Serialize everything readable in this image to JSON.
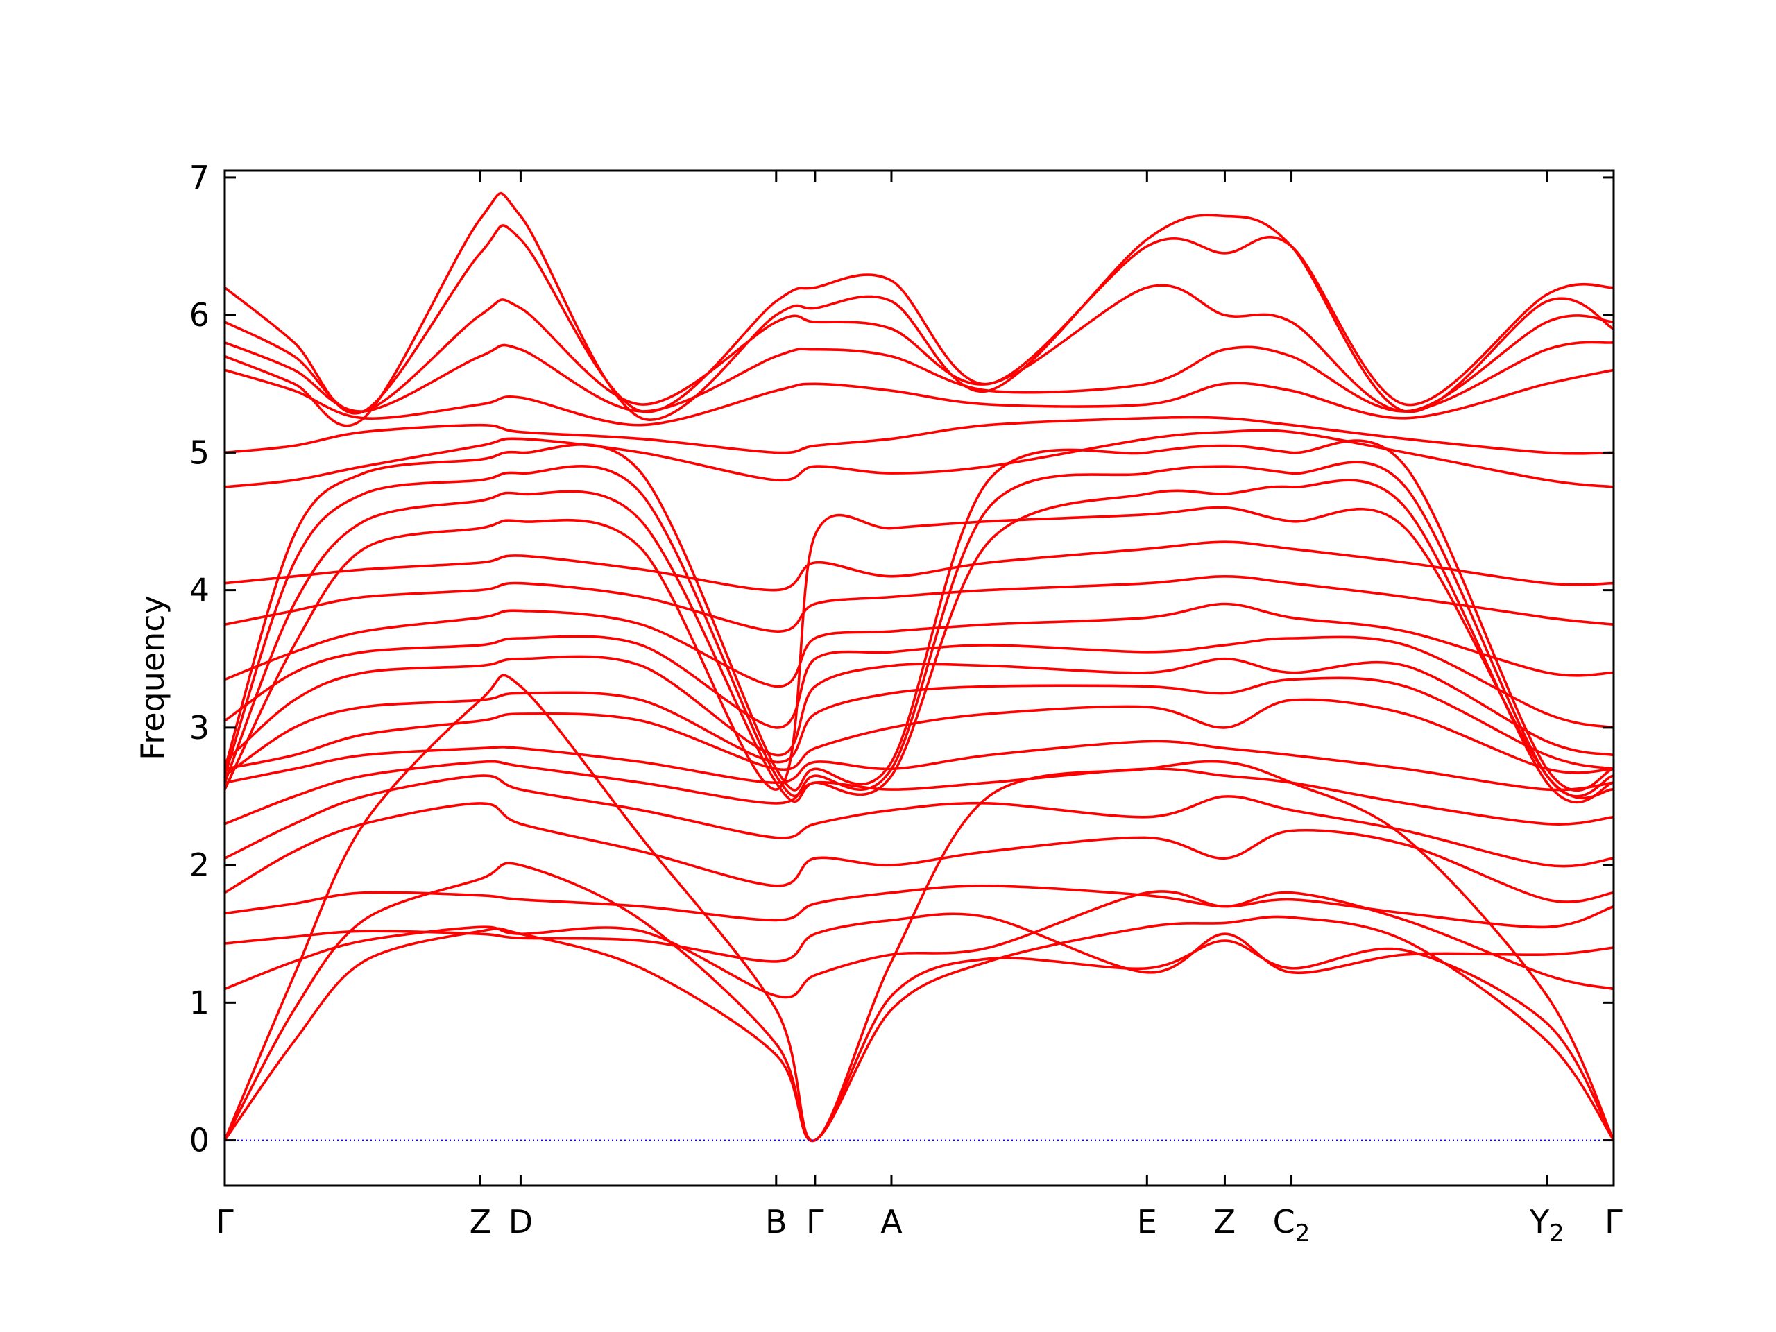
{
  "chart_data": {
    "type": "line",
    "title": "",
    "xlabel": "",
    "ylabel": "Frequency",
    "ylim": [
      -0.33,
      7.05
    ],
    "yticks": [
      0,
      1,
      2,
      3,
      4,
      5,
      6,
      7
    ],
    "grid": false,
    "legend": "none",
    "band_color": "#ff0000",
    "zero_line_color": "#0000ff",
    "high_symmetry_points": [
      {
        "label": "Γ",
        "sub": "",
        "x": 0.0
      },
      {
        "label": "Z",
        "sub": "",
        "x": 0.184
      },
      {
        "label": "D",
        "sub": "",
        "x": 0.213
      },
      {
        "label": "B",
        "sub": "",
        "x": 0.397
      },
      {
        "label": "Γ",
        "sub": "",
        "x": 0.425
      },
      {
        "label": "A",
        "sub": "",
        "x": 0.48
      },
      {
        "label": "E",
        "sub": "",
        "x": 0.664
      },
      {
        "label": "Z",
        "sub": "",
        "x": 0.72
      },
      {
        "label": "C",
        "sub": "2",
        "x": 0.768
      },
      {
        "label": "Y",
        "sub": "2",
        "x": 0.952
      },
      {
        "label": "Γ",
        "sub": "",
        "x": 1.0
      }
    ],
    "series": [
      {
        "x": [
          0.0,
          0.05,
          0.1,
          0.184,
          0.213,
          0.3,
          0.397,
          0.425,
          0.48,
          0.55,
          0.664,
          0.72,
          0.768,
          0.85,
          0.952,
          1.0
        ],
        "values": [
          0.0,
          0.72,
          1.3,
          1.52,
          1.5,
          1.25,
          0.62,
          0.0,
          0.95,
          1.3,
          1.55,
          1.58,
          1.62,
          1.45,
          0.72,
          0.0
        ]
      },
      {
        "x": [
          0.0,
          0.05,
          0.1,
          0.184,
          0.213,
          0.3,
          0.397,
          0.425,
          0.48,
          0.55,
          0.664,
          0.72,
          0.768,
          0.85,
          0.952,
          1.0
        ],
        "values": [
          0.0,
          0.95,
          1.6,
          1.9,
          2.0,
          1.6,
          0.7,
          0.0,
          1.05,
          1.32,
          1.25,
          1.45,
          1.25,
          1.38,
          0.85,
          0.0
        ]
      },
      {
        "x": [
          0.0,
          0.05,
          0.1,
          0.184,
          0.213,
          0.3,
          0.397,
          0.425,
          0.48,
          0.55,
          0.664,
          0.72,
          0.768,
          0.85,
          0.952,
          1.0
        ],
        "values": [
          0.0,
          1.2,
          2.3,
          3.2,
          3.3,
          2.2,
          0.95,
          0.0,
          1.3,
          2.5,
          2.7,
          2.75,
          2.6,
          2.2,
          1.05,
          0.0
        ]
      },
      {
        "x": [
          0.0,
          0.05,
          0.1,
          0.184,
          0.213,
          0.3,
          0.397,
          0.425,
          0.48,
          0.55,
          0.664,
          0.72,
          0.768,
          0.85,
          0.952,
          1.0
        ],
        "values": [
          1.1,
          1.3,
          1.45,
          1.55,
          1.5,
          1.52,
          1.05,
          1.2,
          1.35,
          1.4,
          1.8,
          1.7,
          1.8,
          1.6,
          1.2,
          1.1
        ]
      },
      {
        "x": [
          0.0,
          0.05,
          0.1,
          0.184,
          0.213,
          0.3,
          0.397,
          0.425,
          0.48,
          0.55,
          0.664,
          0.72,
          0.768,
          0.85,
          0.952,
          1.0
        ],
        "values": [
          1.43,
          1.48,
          1.52,
          1.5,
          1.47,
          1.45,
          1.3,
          1.5,
          1.6,
          1.62,
          1.22,
          1.5,
          1.22,
          1.35,
          1.35,
          1.4
        ]
      },
      {
        "x": [
          0.0,
          0.05,
          0.1,
          0.184,
          0.213,
          0.3,
          0.397,
          0.425,
          0.48,
          0.55,
          0.664,
          0.72,
          0.768,
          0.85,
          0.952,
          1.0
        ],
        "values": [
          1.65,
          1.72,
          1.8,
          1.78,
          1.75,
          1.7,
          1.6,
          1.72,
          1.8,
          1.85,
          1.78,
          1.7,
          1.75,
          1.65,
          1.55,
          1.7
        ]
      },
      {
        "x": [
          0.0,
          0.05,
          0.1,
          0.184,
          0.213,
          0.3,
          0.397,
          0.425,
          0.48,
          0.55,
          0.664,
          0.72,
          0.768,
          0.85,
          0.952,
          1.0
        ],
        "values": [
          1.8,
          2.1,
          2.3,
          2.45,
          2.3,
          2.1,
          1.85,
          2.05,
          2.0,
          2.1,
          2.2,
          2.05,
          2.25,
          2.15,
          1.75,
          1.8
        ]
      },
      {
        "x": [
          0.0,
          0.05,
          0.1,
          0.184,
          0.213,
          0.3,
          0.397,
          0.425,
          0.48,
          0.55,
          0.664,
          0.72,
          0.768,
          0.85,
          0.952,
          1.0
        ],
        "values": [
          2.05,
          2.3,
          2.5,
          2.65,
          2.55,
          2.4,
          2.2,
          2.3,
          2.4,
          2.45,
          2.35,
          2.5,
          2.4,
          2.25,
          2.0,
          2.05
        ]
      },
      {
        "x": [
          0.0,
          0.05,
          0.1,
          0.184,
          0.213,
          0.3,
          0.397,
          0.425,
          0.48,
          0.55,
          0.664,
          0.72,
          0.768,
          0.85,
          0.952,
          1.0
        ],
        "values": [
          2.3,
          2.5,
          2.65,
          2.75,
          2.72,
          2.6,
          2.45,
          2.6,
          2.55,
          2.6,
          2.7,
          2.65,
          2.6,
          2.45,
          2.3,
          2.35
        ]
      },
      {
        "x": [
          0.0,
          0.05,
          0.1,
          0.184,
          0.213,
          0.3,
          0.397,
          0.425,
          0.48,
          0.55,
          0.664,
          0.72,
          0.768,
          0.85,
          0.952,
          1.0
        ],
        "values": [
          2.6,
          2.7,
          2.8,
          2.85,
          2.85,
          2.75,
          2.6,
          2.75,
          2.7,
          2.8,
          2.9,
          2.85,
          2.8,
          2.7,
          2.55,
          2.6
        ]
      },
      {
        "x": [
          0.0,
          0.05,
          0.1,
          0.184,
          0.213,
          0.3,
          0.397,
          0.425,
          0.48,
          0.55,
          0.664,
          0.72,
          0.768,
          0.85,
          0.952,
          1.0
        ],
        "values": [
          2.7,
          2.8,
          2.95,
          3.05,
          3.1,
          3.05,
          2.7,
          2.85,
          3.0,
          3.1,
          3.15,
          3.0,
          3.2,
          3.1,
          2.7,
          2.7
        ]
      },
      {
        "x": [
          0.0,
          0.05,
          0.1,
          0.184,
          0.213,
          0.3,
          0.397,
          0.425,
          0.48,
          0.55,
          0.664,
          0.72,
          0.768,
          0.85,
          0.952,
          1.0
        ],
        "values": [
          2.65,
          3.0,
          3.15,
          3.2,
          3.25,
          3.2,
          2.75,
          3.1,
          3.25,
          3.3,
          3.3,
          3.25,
          3.35,
          3.3,
          2.8,
          2.7
        ]
      },
      {
        "x": [
          0.0,
          0.05,
          0.1,
          0.184,
          0.213,
          0.3,
          0.397,
          0.425,
          0.48,
          0.55,
          0.664,
          0.72,
          0.768,
          0.85,
          0.952,
          1.0
        ],
        "values": [
          2.75,
          3.2,
          3.4,
          3.45,
          3.5,
          3.45,
          2.8,
          3.3,
          3.45,
          3.45,
          3.4,
          3.5,
          3.4,
          3.45,
          2.9,
          2.8
        ]
      },
      {
        "x": [
          0.0,
          0.05,
          0.1,
          0.184,
          0.213,
          0.3,
          0.397,
          0.425,
          0.48,
          0.55,
          0.664,
          0.72,
          0.768,
          0.85,
          0.952,
          1.0
        ],
        "values": [
          3.05,
          3.4,
          3.55,
          3.6,
          3.65,
          3.6,
          3.0,
          3.5,
          3.55,
          3.6,
          3.55,
          3.6,
          3.65,
          3.6,
          3.1,
          3.0
        ]
      },
      {
        "x": [
          0.0,
          0.05,
          0.1,
          0.184,
          0.213,
          0.3,
          0.397,
          0.425,
          0.48,
          0.55,
          0.664,
          0.72,
          0.768,
          0.85,
          0.952,
          1.0
        ],
        "values": [
          3.35,
          3.55,
          3.7,
          3.8,
          3.85,
          3.75,
          3.3,
          3.65,
          3.7,
          3.75,
          3.8,
          3.9,
          3.8,
          3.7,
          3.4,
          3.4
        ]
      },
      {
        "x": [
          0.0,
          0.05,
          0.1,
          0.184,
          0.213,
          0.3,
          0.397,
          0.425,
          0.48,
          0.55,
          0.664,
          0.72,
          0.768,
          0.85,
          0.952,
          1.0
        ],
        "values": [
          3.75,
          3.85,
          3.95,
          4.0,
          4.05,
          3.95,
          3.7,
          3.9,
          3.95,
          4.0,
          4.05,
          4.1,
          4.05,
          3.95,
          3.8,
          3.75
        ]
      },
      {
        "x": [
          0.0,
          0.05,
          0.1,
          0.184,
          0.213,
          0.3,
          0.397,
          0.425,
          0.48,
          0.55,
          0.664,
          0.72,
          0.768,
          0.85,
          0.952,
          1.0
        ],
        "values": [
          4.05,
          4.1,
          4.15,
          4.2,
          4.25,
          4.15,
          4.0,
          4.2,
          4.1,
          4.2,
          4.3,
          4.35,
          4.3,
          4.2,
          4.05,
          4.05
        ]
      },
      {
        "x": [
          0.0,
          0.05,
          0.1,
          0.184,
          0.213,
          0.3,
          0.397,
          0.425,
          0.48,
          0.55,
          0.664,
          0.72,
          0.768,
          0.85,
          0.952,
          1.0
        ],
        "values": [
          2.55,
          3.6,
          4.3,
          4.45,
          4.5,
          4.3,
          2.55,
          4.4,
          4.45,
          4.5,
          4.55,
          4.6,
          4.5,
          4.45,
          2.65,
          2.55
        ]
      },
      {
        "x": [
          0.0,
          0.05,
          0.1,
          0.184,
          0.213,
          0.3,
          0.397,
          0.425,
          0.48,
          0.55,
          0.664,
          0.72,
          0.768,
          0.85,
          0.952,
          1.0
        ],
        "values": [
          2.6,
          3.9,
          4.5,
          4.65,
          4.7,
          4.5,
          2.6,
          2.6,
          2.65,
          4.35,
          4.7,
          4.7,
          4.75,
          4.6,
          2.6,
          2.6
        ]
      },
      {
        "x": [
          0.0,
          0.05,
          0.1,
          0.184,
          0.213,
          0.3,
          0.397,
          0.425,
          0.48,
          0.55,
          0.664,
          0.72,
          0.768,
          0.85,
          0.952,
          1.0
        ],
        "values": [
          2.65,
          4.2,
          4.7,
          4.8,
          4.85,
          4.7,
          2.65,
          2.65,
          2.7,
          4.6,
          4.85,
          4.9,
          4.85,
          4.75,
          2.65,
          2.65
        ]
      },
      {
        "x": [
          0.0,
          0.05,
          0.1,
          0.184,
          0.213,
          0.3,
          0.397,
          0.425,
          0.48,
          0.55,
          0.664,
          0.72,
          0.768,
          0.85,
          0.952,
          1.0
        ],
        "values": [
          2.7,
          4.4,
          4.85,
          4.95,
          5.0,
          4.85,
          2.7,
          2.7,
          2.75,
          4.8,
          5.0,
          5.05,
          5.0,
          4.9,
          2.7,
          2.7
        ]
      },
      {
        "x": [
          0.0,
          0.05,
          0.1,
          0.184,
          0.213,
          0.3,
          0.397,
          0.425,
          0.48,
          0.55,
          0.664,
          0.72,
          0.768,
          0.85,
          0.952,
          1.0
        ],
        "values": [
          4.75,
          4.8,
          4.9,
          5.05,
          5.1,
          5.0,
          4.8,
          4.9,
          4.85,
          4.9,
          5.1,
          5.15,
          5.15,
          5.0,
          4.8,
          4.75
        ]
      },
      {
        "x": [
          0.0,
          0.05,
          0.1,
          0.184,
          0.213,
          0.3,
          0.397,
          0.425,
          0.48,
          0.55,
          0.664,
          0.72,
          0.768,
          0.85,
          0.952,
          1.0
        ],
        "values": [
          5.0,
          5.05,
          5.15,
          5.2,
          5.15,
          5.1,
          5.0,
          5.05,
          5.1,
          5.2,
          5.25,
          5.25,
          5.2,
          5.1,
          5.0,
          5.0
        ]
      },
      {
        "x": [
          0.0,
          0.05,
          0.1,
          0.184,
          0.213,
          0.3,
          0.397,
          0.425,
          0.48,
          0.55,
          0.664,
          0.72,
          0.768,
          0.85,
          0.952,
          1.0
        ],
        "values": [
          5.6,
          5.45,
          5.25,
          5.35,
          5.4,
          5.2,
          5.45,
          5.5,
          5.45,
          5.35,
          5.35,
          5.5,
          5.45,
          5.25,
          5.5,
          5.6
        ]
      },
      {
        "x": [
          0.0,
          0.05,
          0.1,
          0.184,
          0.213,
          0.3,
          0.397,
          0.425,
          0.48,
          0.55,
          0.664,
          0.72,
          0.768,
          0.85,
          0.952,
          1.0
        ],
        "values": [
          5.8,
          5.6,
          5.3,
          5.7,
          5.75,
          5.3,
          5.7,
          5.75,
          5.7,
          5.45,
          5.5,
          5.75,
          5.7,
          5.3,
          5.75,
          5.8
        ]
      },
      {
        "x": [
          0.0,
          0.05,
          0.1,
          0.184,
          0.213,
          0.3,
          0.397,
          0.425,
          0.48,
          0.55,
          0.664,
          0.72,
          0.768,
          0.85,
          0.952,
          1.0
        ],
        "values": [
          5.95,
          5.7,
          5.3,
          6.0,
          6.05,
          5.35,
          5.95,
          5.95,
          5.9,
          5.5,
          6.2,
          6.0,
          5.95,
          5.3,
          5.95,
          5.95
        ]
      },
      {
        "x": [
          0.0,
          0.05,
          0.1,
          0.184,
          0.213,
          0.3,
          0.397,
          0.425,
          0.48,
          0.55,
          0.664,
          0.72,
          0.768,
          0.85,
          0.952,
          1.0
        ],
        "values": [
          6.2,
          5.8,
          5.3,
          6.45,
          6.55,
          5.3,
          6.1,
          6.2,
          6.25,
          5.5,
          6.5,
          6.45,
          6.5,
          5.35,
          6.15,
          6.2
        ]
      },
      {
        "x": [
          0.0,
          0.05,
          0.1,
          0.184,
          0.213,
          0.3,
          0.397,
          0.425,
          0.48,
          0.55,
          0.664,
          0.72,
          0.768,
          0.85,
          0.952,
          1.0
        ],
        "values": [
          5.7,
          5.5,
          5.25,
          6.7,
          6.72,
          5.25,
          6.0,
          6.05,
          6.1,
          5.45,
          6.55,
          6.72,
          6.5,
          5.3,
          6.1,
          5.9
        ]
      }
    ]
  }
}
